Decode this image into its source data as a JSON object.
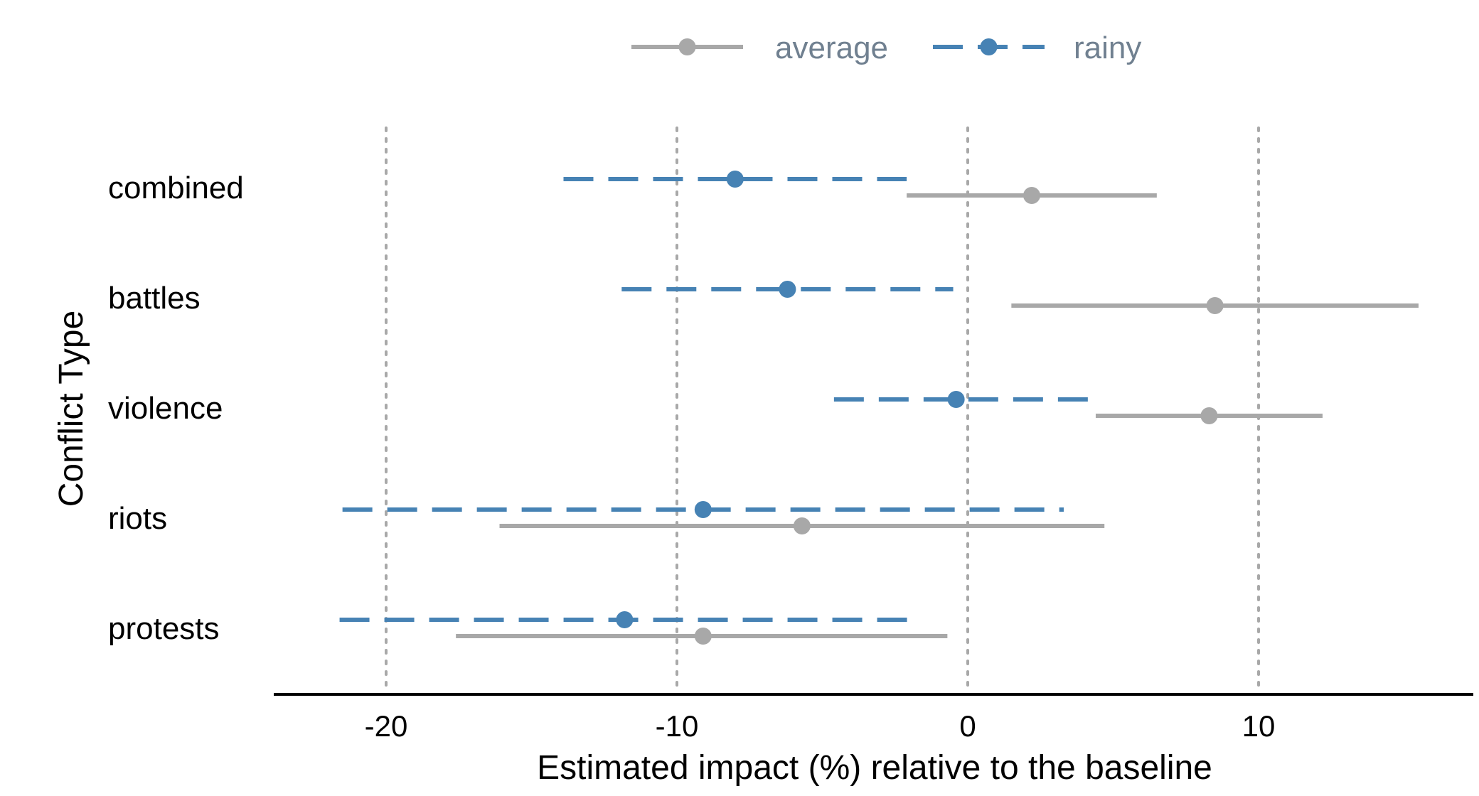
{
  "chart_data": {
    "type": "errorbar",
    "orientation": "horizontal",
    "xlabel": "Estimated impact (%) relative to the baseline",
    "ylabel": "Conflict Type",
    "xlim": [
      -23.8,
      17.5
    ],
    "xticks": [
      -20,
      -10,
      0,
      10
    ],
    "tick_labels": [
      "-20",
      "-10",
      "0",
      "10"
    ],
    "grid": "vertical dotted",
    "legend_position": "top",
    "categories": [
      "combined",
      "battles",
      "violence",
      "riots",
      "protests"
    ],
    "series": [
      {
        "name": "average",
        "color": "#a8a8a8",
        "linestyle": "solid",
        "points": [
          {
            "category": "combined",
            "estimate": 2.2,
            "low": -2.1,
            "high": 6.5
          },
          {
            "category": "battles",
            "estimate": 8.5,
            "low": 1.5,
            "high": 15.5
          },
          {
            "category": "violence",
            "estimate": 8.3,
            "low": 4.4,
            "high": 12.2
          },
          {
            "category": "riots",
            "estimate": -5.7,
            "low": -16.1,
            "high": 4.7
          },
          {
            "category": "protests",
            "estimate": -9.1,
            "low": -17.6,
            "high": -0.7
          }
        ]
      },
      {
        "name": "rainy",
        "color": "#4682b4",
        "linestyle": "dashed",
        "points": [
          {
            "category": "combined",
            "estimate": -8.0,
            "low": -13.9,
            "high": -2.1
          },
          {
            "category": "battles",
            "estimate": -6.2,
            "low": -11.9,
            "high": -0.5
          },
          {
            "category": "violence",
            "estimate": -0.4,
            "low": -4.6,
            "high": 4.2
          },
          {
            "category": "riots",
            "estimate": -9.1,
            "low": -21.5,
            "high": 3.3
          },
          {
            "category": "protests",
            "estimate": -11.8,
            "low": -21.6,
            "high": -1.6
          }
        ]
      }
    ]
  }
}
